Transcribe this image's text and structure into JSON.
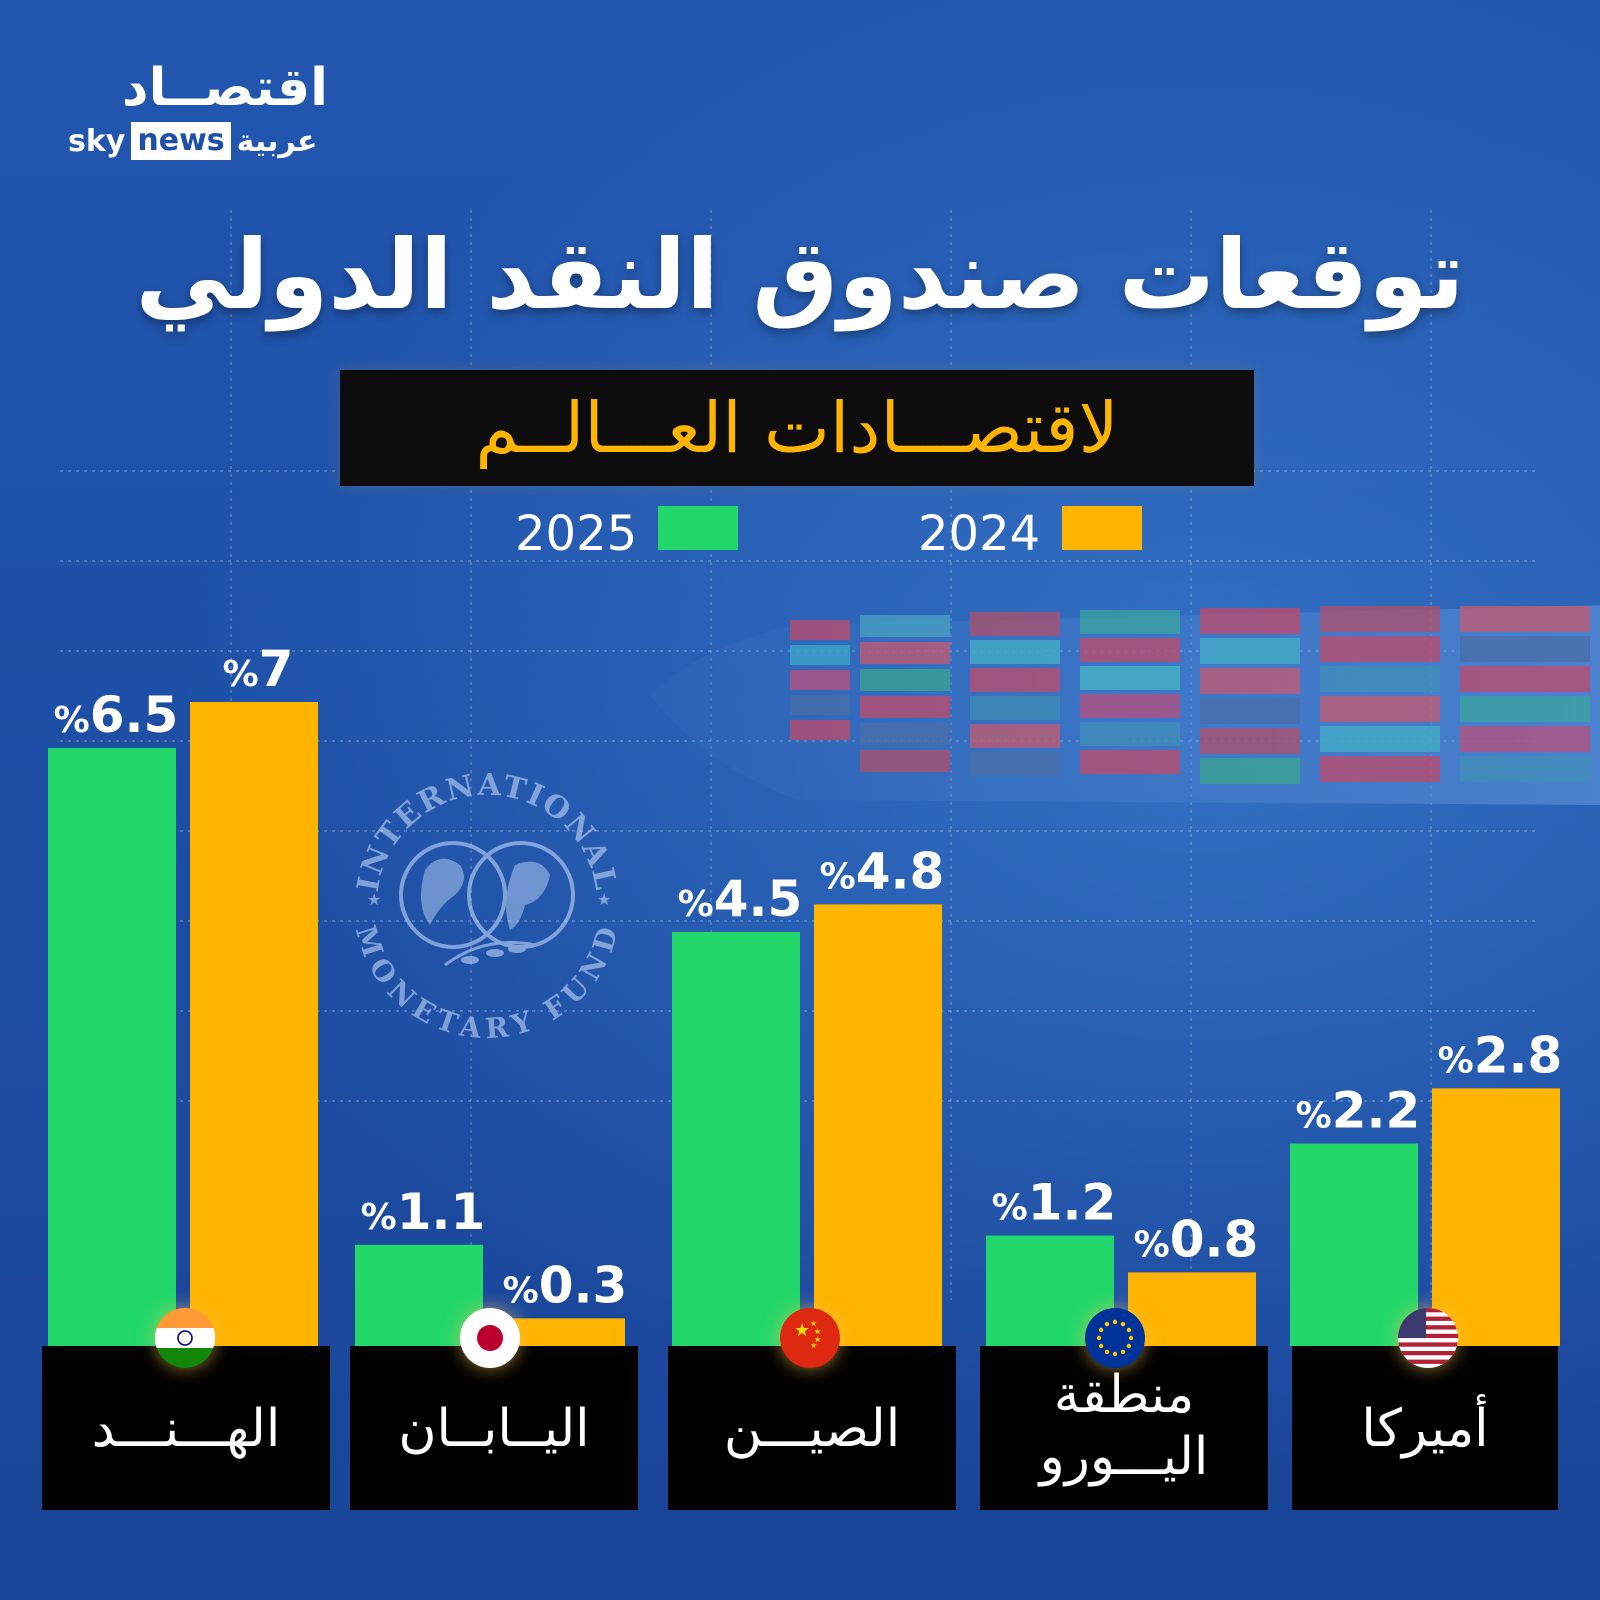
{
  "brand": {
    "name_ar": "اقتصــاد",
    "sky": "sky",
    "news": "news",
    "arabia": "عربية"
  },
  "title": "توقعات صندوق النقد الدولي",
  "subtitle": "لاقتصـــادات العـــالــم",
  "seal": {
    "top_text": "INTERNATIONAL",
    "bottom_text": "MONETARY FUND"
  },
  "colors": {
    "series_2025": "#22d86b",
    "series_2024": "#ffb400",
    "background": "#1f4fa6"
  },
  "chart_data": {
    "type": "bar",
    "categories": [
      "الهـــنـــد",
      "اليــابــان",
      "الصيـــن",
      "منطقة اليـــورو",
      "أميركا"
    ],
    "category_lines": [
      [
        "الهـــنـــد"
      ],
      [
        "اليــابــان"
      ],
      [
        "الصيـــن"
      ],
      [
        "منطقة",
        "اليـــورو"
      ],
      [
        "أميركا"
      ]
    ],
    "flags": [
      "india-flag",
      "japan-flag",
      "china-flag",
      "eu-flag",
      "usa-flag"
    ],
    "series": [
      {
        "name": "2025",
        "values": [
          6.5,
          1.1,
          4.5,
          1.2,
          2.2
        ],
        "color": "#22d86b"
      },
      {
        "name": "2024",
        "values": [
          7,
          0.3,
          4.8,
          0.8,
          2.8
        ],
        "color": "#ffb400"
      }
    ],
    "value_prefix": "%",
    "legend_placement": "top-center",
    "grid": false
  }
}
